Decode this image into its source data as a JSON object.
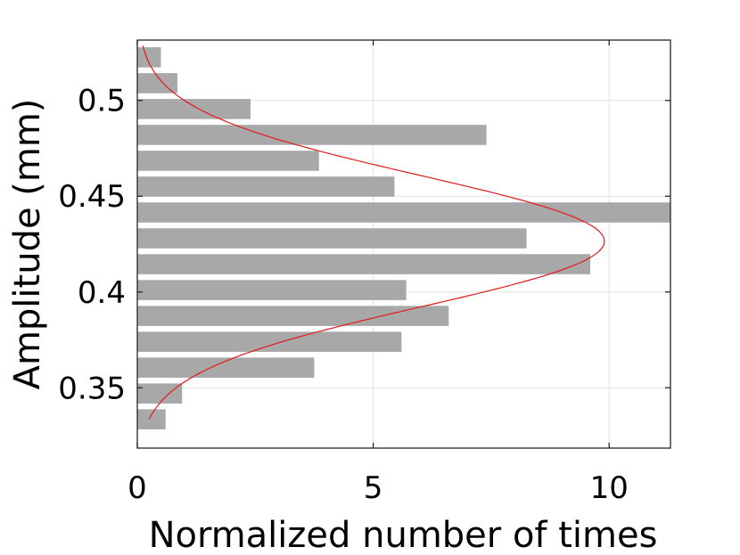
{
  "chart_data": {
    "type": "bar",
    "orientation": "horizontal",
    "xlabel": "Normalized number of times",
    "ylabel": "Amplitude (mm)",
    "xlim": [
      0,
      11.3
    ],
    "ylim": [
      0.3185,
      0.5315
    ],
    "xticks": [
      0,
      5,
      10
    ],
    "xtick_labels": [
      "0",
      "5",
      "10"
    ],
    "yticks": [
      0.35,
      0.4,
      0.45,
      0.5
    ],
    "ytick_labels": [
      "0.35",
      "0.4",
      "0.45",
      "0.5"
    ],
    "grid": true,
    "bar_height": 0.0105,
    "bins": [
      0.3335,
      0.347,
      0.3605,
      0.374,
      0.3875,
      0.401,
      0.4145,
      0.428,
      0.4415,
      0.455,
      0.4685,
      0.482,
      0.4955,
      0.509,
      0.5225
    ],
    "values": [
      0.6,
      0.95,
      3.75,
      5.6,
      6.6,
      5.7,
      9.6,
      8.25,
      11.3,
      5.45,
      3.85,
      7.4,
      2.4,
      0.85,
      0.5
    ],
    "fit": {
      "type": "normal",
      "mean": 0.4265,
      "std": 0.0343,
      "peak": 9.9,
      "range": [
        0.3335,
        0.5285
      ]
    },
    "colors": {
      "bars": "#a8a8a8",
      "fit": "#e31a1c",
      "grid": "#e2e2e2",
      "axis": "#262626"
    }
  }
}
